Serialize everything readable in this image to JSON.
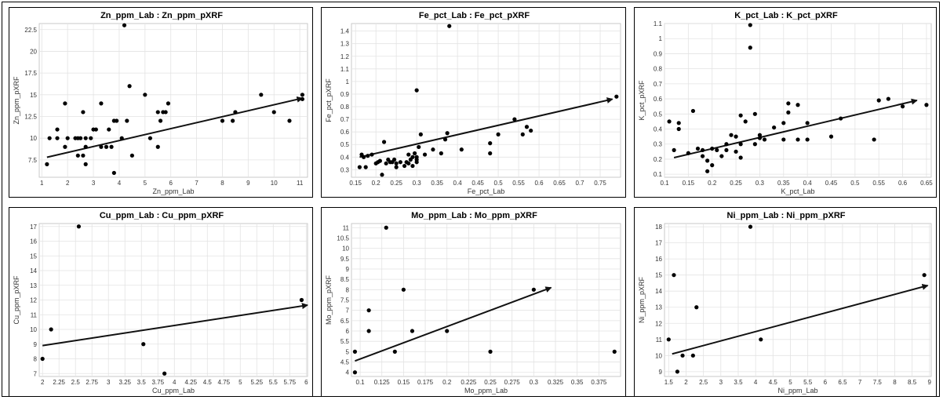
{
  "chart_data": [
    {
      "type": "scatter",
      "title": "Zn_ppm_Lab : Zn_ppm_pXRF",
      "xlabel": "Zn_ppm_Lab",
      "ylabel": "Zn_ppm_pXRF",
      "xlim": [
        0.9,
        11.3
      ],
      "ylim": [
        5.5,
        23.2
      ],
      "xticks": [
        "1",
        "2",
        "3",
        "4",
        "5",
        "6",
        "7",
        "8",
        "9",
        "10",
        "11"
      ],
      "yticks": [
        "7.5",
        "10",
        "12.5",
        "15",
        "17.5",
        "20",
        "22.5"
      ],
      "grid": true,
      "points": [
        [
          1.2,
          7
        ],
        [
          1.3,
          10
        ],
        [
          1.6,
          11
        ],
        [
          1.6,
          10
        ],
        [
          1.9,
          14
        ],
        [
          1.9,
          9
        ],
        [
          2.0,
          10
        ],
        [
          2.3,
          10
        ],
        [
          2.4,
          10
        ],
        [
          2.4,
          8
        ],
        [
          2.5,
          10
        ],
        [
          2.6,
          13
        ],
        [
          2.6,
          8
        ],
        [
          2.7,
          9
        ],
        [
          2.7,
          7
        ],
        [
          2.7,
          10
        ],
        [
          2.9,
          10
        ],
        [
          3.0,
          11
        ],
        [
          3.1,
          11
        ],
        [
          3.3,
          9
        ],
        [
          3.3,
          14
        ],
        [
          3.5,
          9
        ],
        [
          3.6,
          11
        ],
        [
          3.7,
          9
        ],
        [
          3.8,
          6
        ],
        [
          3.8,
          12
        ],
        [
          3.9,
          12
        ],
        [
          4.1,
          10
        ],
        [
          4.2,
          23
        ],
        [
          4.3,
          12
        ],
        [
          4.4,
          16
        ],
        [
          4.5,
          8
        ],
        [
          5.0,
          15
        ],
        [
          5.2,
          10
        ],
        [
          5.5,
          13
        ],
        [
          5.5,
          9
        ],
        [
          5.6,
          12
        ],
        [
          5.7,
          13
        ],
        [
          5.8,
          13
        ],
        [
          5.9,
          14
        ],
        [
          8.0,
          12
        ],
        [
          8.4,
          12
        ],
        [
          8.5,
          13
        ],
        [
          9.5,
          15
        ],
        [
          10.0,
          13
        ],
        [
          10.6,
          12
        ],
        [
          11.1,
          15
        ],
        [
          11.1,
          14.5
        ]
      ],
      "trend": [
        [
          1.2,
          7.8
        ],
        [
          11.1,
          14.6
        ]
      ]
    },
    {
      "type": "scatter",
      "title": "Fe_pct_Lab : Fe_pct_pXRF",
      "xlabel": "Fe_pct_Lab",
      "ylabel": "Fe_pct_pXRF",
      "xlim": [
        0.14,
        0.8
      ],
      "ylim": [
        0.24,
        1.46
      ],
      "xticks": [
        "0.15",
        "0.2",
        "0.25",
        "0.3",
        "0.35",
        "0.4",
        "0.45",
        "0.5",
        "0.55",
        "0.6",
        "0.65",
        "0.7",
        "0.75"
      ],
      "yticks": [
        "0.3",
        "0.4",
        "0.5",
        "0.6",
        "0.7",
        "0.8",
        "0.9",
        "1",
        "1.1",
        "1.2",
        "1.3",
        "1.4"
      ],
      "grid": true,
      "points": [
        [
          0.16,
          0.32
        ],
        [
          0.165,
          0.42
        ],
        [
          0.17,
          0.4
        ],
        [
          0.175,
          0.32
        ],
        [
          0.18,
          0.41
        ],
        [
          0.19,
          0.42
        ],
        [
          0.2,
          0.35
        ],
        [
          0.205,
          0.36
        ],
        [
          0.21,
          0.37
        ],
        [
          0.215,
          0.26
        ],
        [
          0.22,
          0.52
        ],
        [
          0.225,
          0.35
        ],
        [
          0.23,
          0.38
        ],
        [
          0.235,
          0.36
        ],
        [
          0.24,
          0.36
        ],
        [
          0.245,
          0.38
        ],
        [
          0.25,
          0.32
        ],
        [
          0.25,
          0.35
        ],
        [
          0.26,
          0.36
        ],
        [
          0.27,
          0.33
        ],
        [
          0.275,
          0.36
        ],
        [
          0.28,
          0.42
        ],
        [
          0.28,
          0.35
        ],
        [
          0.285,
          0.38
        ],
        [
          0.29,
          0.4
        ],
        [
          0.29,
          0.33
        ],
        [
          0.295,
          0.43
        ],
        [
          0.3,
          0.38
        ],
        [
          0.3,
          0.4
        ],
        [
          0.3,
          0.36
        ],
        [
          0.3,
          0.93
        ],
        [
          0.305,
          0.48
        ],
        [
          0.31,
          0.58
        ],
        [
          0.32,
          0.42
        ],
        [
          0.34,
          0.46
        ],
        [
          0.36,
          0.43
        ],
        [
          0.37,
          0.54
        ],
        [
          0.375,
          0.59
        ],
        [
          0.38,
          1.44
        ],
        [
          0.41,
          0.46
        ],
        [
          0.48,
          0.43
        ],
        [
          0.48,
          0.51
        ],
        [
          0.5,
          0.58
        ],
        [
          0.54,
          0.7
        ],
        [
          0.56,
          0.58
        ],
        [
          0.57,
          0.64
        ],
        [
          0.58,
          0.61
        ],
        [
          0.79,
          0.88
        ]
      ],
      "trend": [
        [
          0.16,
          0.4
        ],
        [
          0.78,
          0.86
        ]
      ]
    },
    {
      "type": "scatter",
      "title": "K_pct_Lab : K_pct_pXRF",
      "xlabel": "K_pct_Lab",
      "ylabel": "K_pct_pXRF",
      "xlim": [
        0.1,
        0.66
      ],
      "ylim": [
        0.08,
        1.1
      ],
      "xticks": [
        "0.1",
        "0.15",
        "0.2",
        "0.25",
        "0.3",
        "0.35",
        "0.4",
        "0.45",
        "0.5",
        "0.55",
        "0.6",
        "0.65"
      ],
      "yticks": [
        "0.1",
        "0.2",
        "0.3",
        "0.4",
        "0.5",
        "0.6",
        "0.7",
        "0.8",
        "0.9",
        "1",
        "1.1"
      ],
      "grid": true,
      "points": [
        [
          0.11,
          0.45
        ],
        [
          0.12,
          0.26
        ],
        [
          0.13,
          0.44
        ],
        [
          0.13,
          0.4
        ],
        [
          0.15,
          0.24
        ],
        [
          0.16,
          0.52
        ],
        [
          0.17,
          0.27
        ],
        [
          0.18,
          0.26
        ],
        [
          0.18,
          0.22
        ],
        [
          0.19,
          0.12
        ],
        [
          0.19,
          0.19
        ],
        [
          0.2,
          0.16
        ],
        [
          0.2,
          0.27
        ],
        [
          0.21,
          0.26
        ],
        [
          0.22,
          0.22
        ],
        [
          0.23,
          0.3
        ],
        [
          0.23,
          0.26
        ],
        [
          0.24,
          0.36
        ],
        [
          0.25,
          0.35
        ],
        [
          0.25,
          0.25
        ],
        [
          0.26,
          0.49
        ],
        [
          0.26,
          0.21
        ],
        [
          0.26,
          0.3
        ],
        [
          0.27,
          0.45
        ],
        [
          0.28,
          1.09
        ],
        [
          0.28,
          0.94
        ],
        [
          0.29,
          0.5
        ],
        [
          0.29,
          0.3
        ],
        [
          0.3,
          0.36
        ],
        [
          0.3,
          0.34
        ],
        [
          0.31,
          0.33
        ],
        [
          0.33,
          0.41
        ],
        [
          0.35,
          0.44
        ],
        [
          0.35,
          0.33
        ],
        [
          0.36,
          0.57
        ],
        [
          0.36,
          0.51
        ],
        [
          0.38,
          0.33
        ],
        [
          0.38,
          0.56
        ],
        [
          0.4,
          0.44
        ],
        [
          0.4,
          0.33
        ],
        [
          0.45,
          0.35
        ],
        [
          0.47,
          0.47
        ],
        [
          0.54,
          0.33
        ],
        [
          0.55,
          0.59
        ],
        [
          0.57,
          0.6
        ],
        [
          0.6,
          0.55
        ],
        [
          0.65,
          0.56
        ]
      ],
      "trend": [
        [
          0.12,
          0.21
        ],
        [
          0.63,
          0.59
        ]
      ]
    },
    {
      "type": "scatter",
      "title": "Cu_ppm_Lab : Cu_ppm_pXRF",
      "xlabel": "Cu_ppm_Lab",
      "ylabel": "Cu_ppm_pXRF",
      "xlim": [
        1.95,
        6.02
      ],
      "ylim": [
        6.8,
        17.2
      ],
      "xticks": [
        "2",
        "2.25",
        "2.5",
        "2.75",
        "3",
        "3.25",
        "3.5",
        "3.75",
        "4",
        "4.25",
        "4.5",
        "4.75",
        "5",
        "5.25",
        "5.5",
        "5.75",
        "6"
      ],
      "yticks": [
        "7",
        "8",
        "9",
        "10",
        "11",
        "12",
        "13",
        "14",
        "15",
        "16",
        "17"
      ],
      "grid": true,
      "points": [
        [
          2.0,
          8
        ],
        [
          2.13,
          10
        ],
        [
          2.55,
          17
        ],
        [
          3.53,
          9
        ],
        [
          3.85,
          7
        ],
        [
          5.93,
          12
        ]
      ],
      "trend": [
        [
          2.0,
          8.9
        ],
        [
          6.02,
          11.65
        ]
      ]
    },
    {
      "type": "scatter",
      "title": "Mo_ppm_Lab : Mo_ppm_pXRF",
      "xlabel": "Mo_ppm_Lab",
      "ylabel": "Mo_ppm_pXRF",
      "xlim": [
        0.09,
        0.4
      ],
      "ylim": [
        3.8,
        11.2
      ],
      "xticks": [
        "0.1",
        "0.125",
        "0.15",
        "0.175",
        "0.2",
        "0.225",
        "0.25",
        "0.275",
        "0.3",
        "0.325",
        "0.35",
        "0.375"
      ],
      "yticks": [
        "4",
        "4.5",
        "5",
        "5.5",
        "6",
        "6.5",
        "7",
        "7.5",
        "8",
        "8.5",
        "9",
        "9.5",
        "10",
        "10.5",
        "11"
      ],
      "grid": true,
      "points": [
        [
          0.094,
          4
        ],
        [
          0.094,
          5
        ],
        [
          0.11,
          7
        ],
        [
          0.11,
          6
        ],
        [
          0.13,
          11
        ],
        [
          0.14,
          5
        ],
        [
          0.15,
          8
        ],
        [
          0.16,
          6
        ],
        [
          0.2,
          6
        ],
        [
          0.25,
          5
        ],
        [
          0.3,
          8
        ],
        [
          0.393,
          5
        ]
      ],
      "trend": [
        [
          0.094,
          4.55
        ],
        [
          0.32,
          8.1
        ]
      ]
    },
    {
      "type": "scatter",
      "title": "Ni_ppm_Lab : Ni_ppm_pXRF",
      "xlabel": "Ni_ppm_Lab",
      "ylabel": "Ni_ppm_pXRF",
      "xlim": [
        1.38,
        9.05
      ],
      "ylim": [
        8.7,
        18.2
      ],
      "xticks": [
        "1.5",
        "2",
        "2.5",
        "3",
        "3.5",
        "4",
        "4.5",
        "5",
        "5.5",
        "6",
        "6.5",
        "7",
        "7.5",
        "8",
        "8.5",
        "9"
      ],
      "yticks": [
        "9",
        "10",
        "11",
        "12",
        "13",
        "14",
        "15",
        "16",
        "17",
        "18"
      ],
      "grid": true,
      "points": [
        [
          1.5,
          11
        ],
        [
          1.65,
          15
        ],
        [
          1.75,
          9
        ],
        [
          1.9,
          10
        ],
        [
          2.2,
          10
        ],
        [
          2.3,
          13
        ],
        [
          3.85,
          18
        ],
        [
          4.15,
          11
        ],
        [
          8.85,
          15
        ]
      ],
      "trend": [
        [
          1.6,
          10.1
        ],
        [
          8.95,
          14.35
        ]
      ]
    }
  ]
}
